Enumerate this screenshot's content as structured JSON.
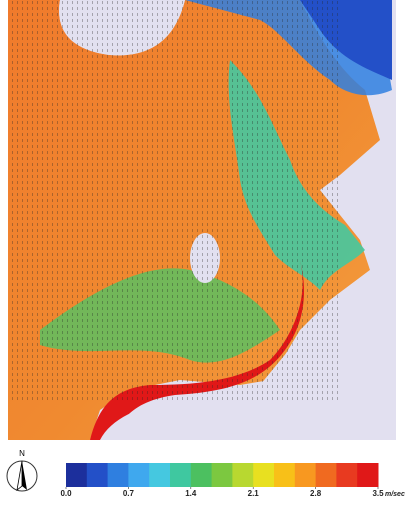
{
  "compass": {
    "label": "N"
  },
  "colorbar": {
    "unit": "m/sec",
    "range": [
      0,
      3.5
    ],
    "ticks": [
      {
        "value": 0,
        "label": "0.0"
      },
      0.7,
      1.4,
      2.1,
      2.8,
      3.5
    ],
    "colors": [
      "#1c2f9c",
      "#2350c8",
      "#2f7fe0",
      "#3fa8ee",
      "#45c8e0",
      "#3fc8a0",
      "#4cc060",
      "#7cc840",
      "#b8d830",
      "#e8e020",
      "#f8c018",
      "#f89820",
      "#f06a20",
      "#e83a20",
      "#e01818"
    ]
  }
}
